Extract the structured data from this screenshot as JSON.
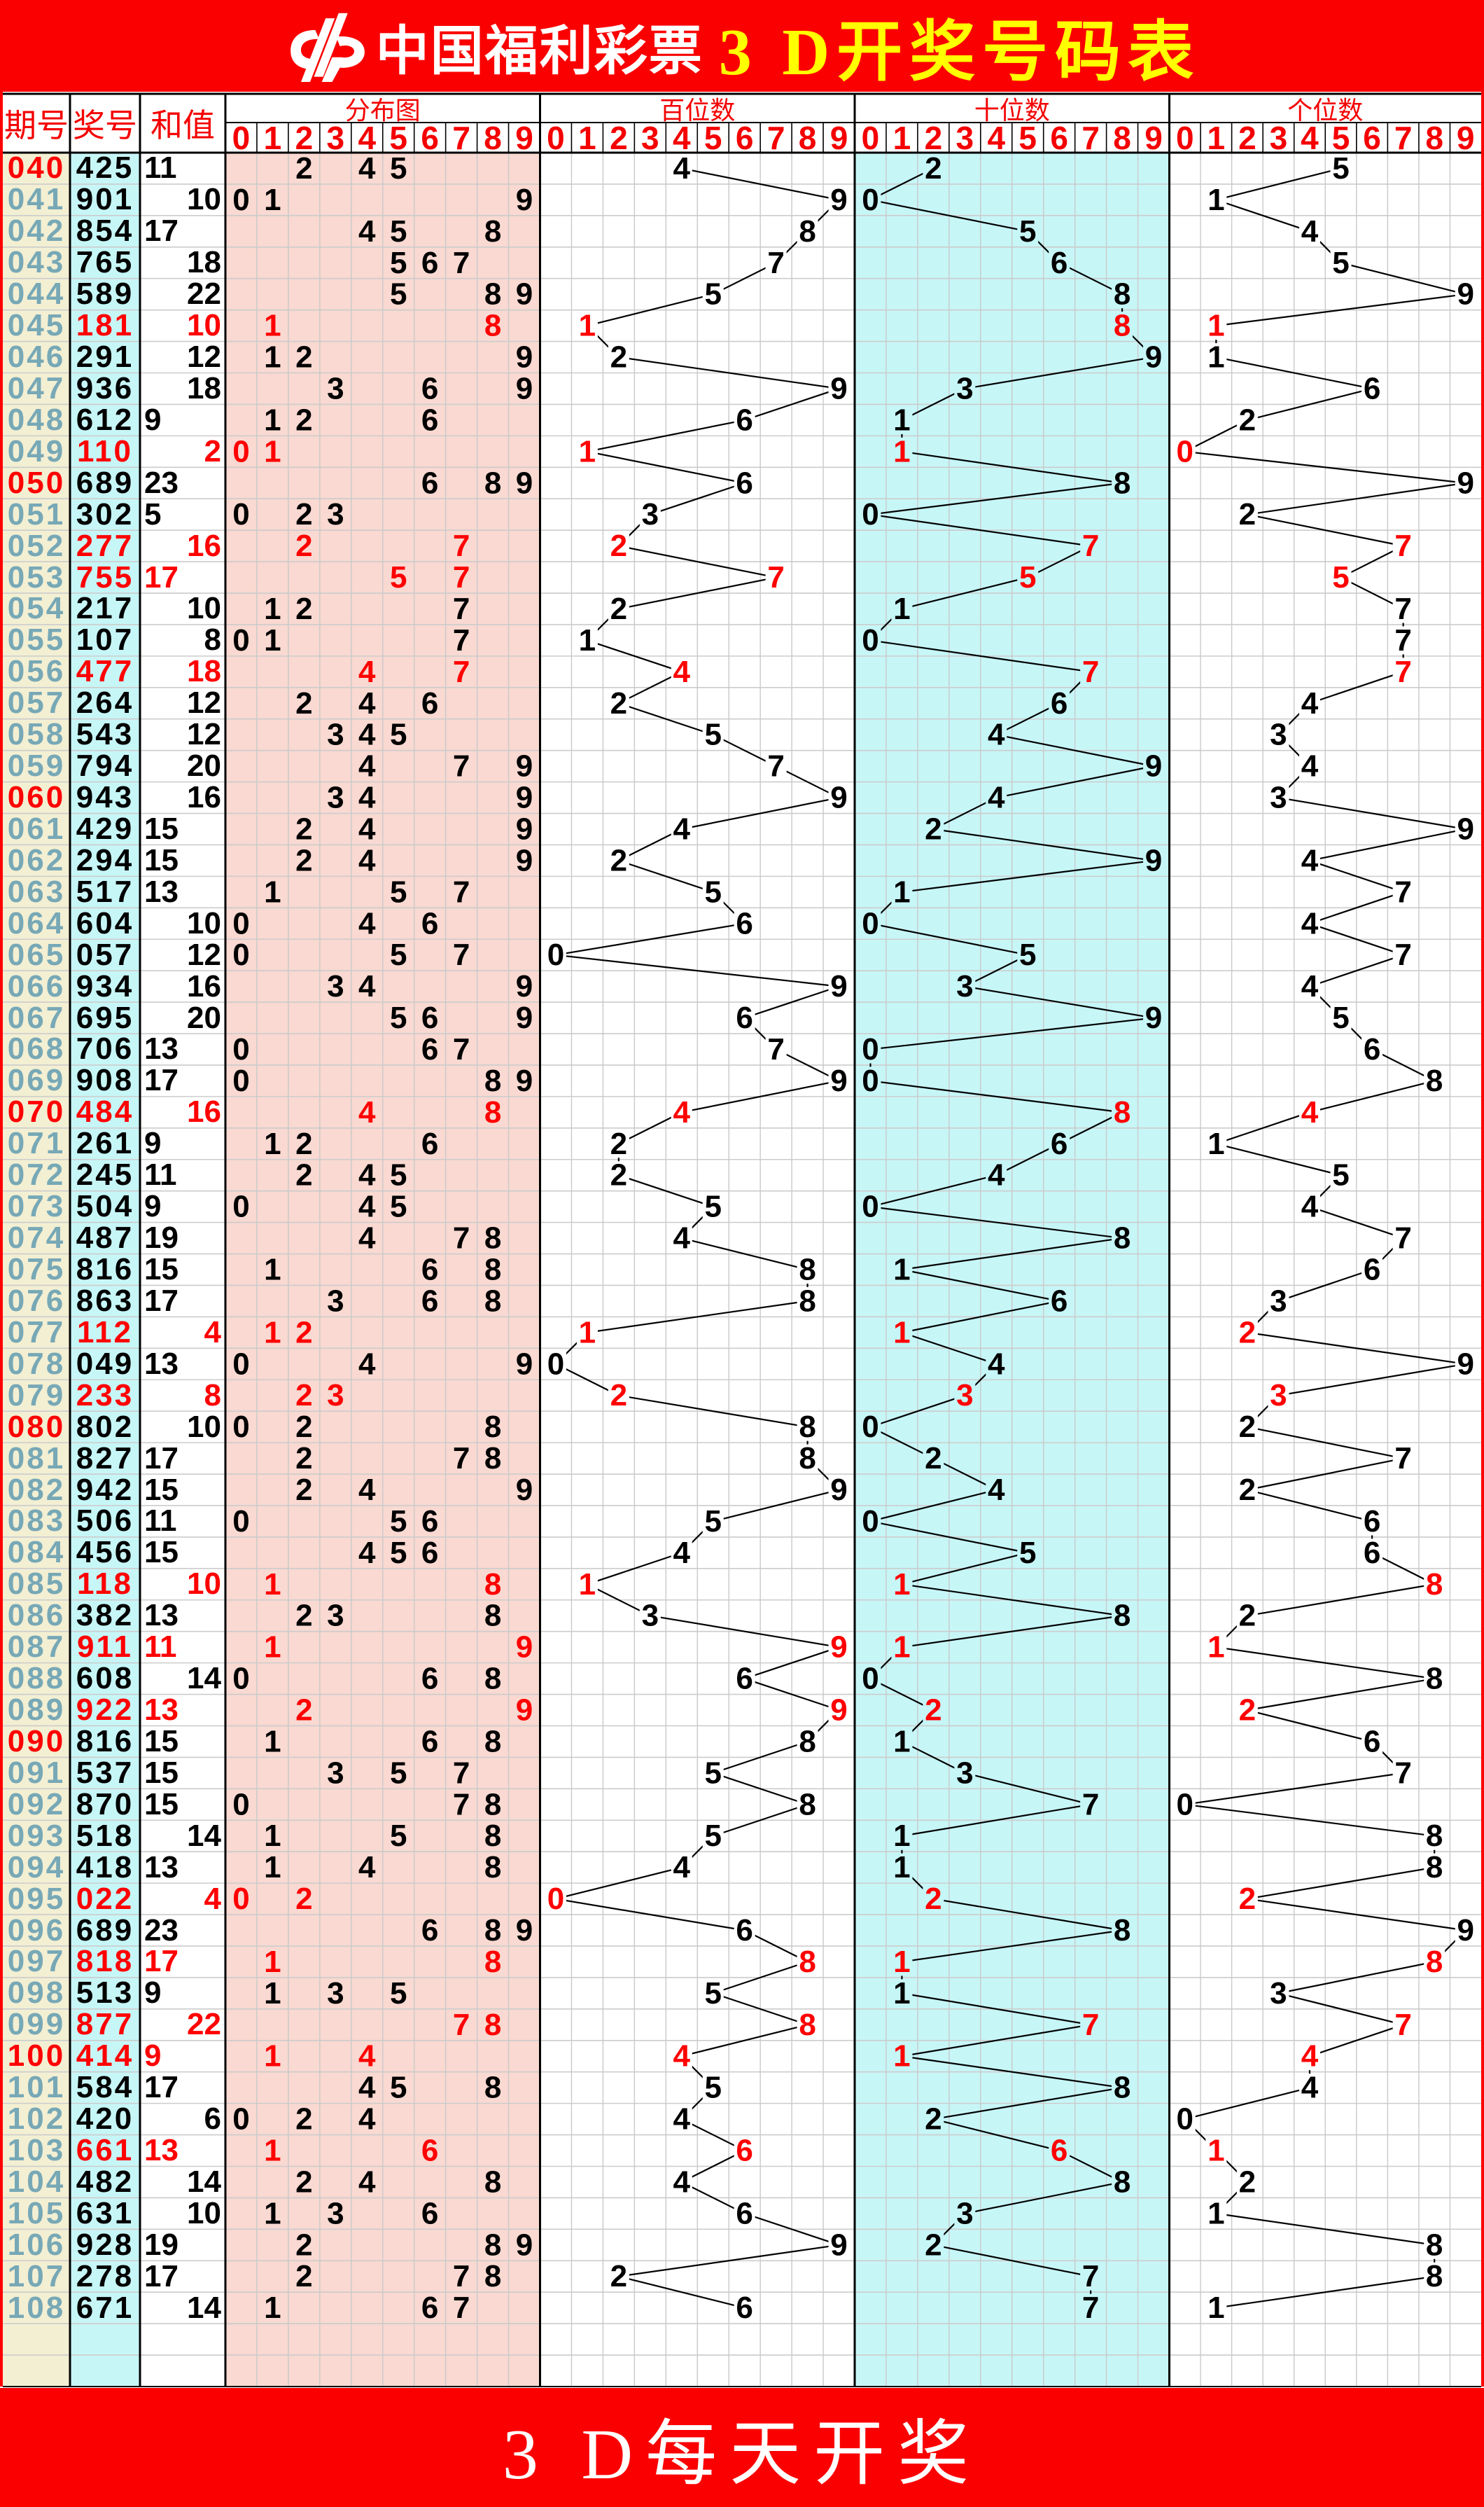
{
  "banner": {
    "brand": "中国福利彩票",
    "title": "3 D开奖号码表",
    "logo_icon": "cwl-logo",
    "background": "#fb0000",
    "brand_color": "#ffffff",
    "title_color": "#ffff00"
  },
  "footer": {
    "text": "3 D每天开奖"
  },
  "columns": {
    "period": "期号",
    "number": "奖号",
    "sum": "和值",
    "sections": [
      "分布图",
      "百位数",
      "十位数",
      "个位数"
    ],
    "digit_headers": [
      "0",
      "1",
      "2",
      "3",
      "4",
      "5",
      "6",
      "7",
      "8",
      "9"
    ]
  },
  "colors": {
    "accent_red": "#ff0000",
    "header_text_red": "#f40000",
    "period_column_bg": "#f3efd3",
    "number_column_bg": "#c7f6f7",
    "distribution_bg": "#f9d9d1",
    "tens_section_bg": "#c7f6f7",
    "period_text_teal": "#77a8b6",
    "grid_line": "#cccccc",
    "section_grid_line": "#c9c9c9",
    "line_color": "#000000"
  },
  "chart_data": {
    "type": "line",
    "panels": [
      "分布图",
      "百位数",
      "十位数",
      "个位数"
    ],
    "x_categories": [
      0,
      1,
      2,
      3,
      4,
      5,
      6,
      7,
      8,
      9
    ],
    "trailing_empty_rows": 2,
    "rows": [
      {
        "period": "040",
        "number": "425",
        "sum": 11,
        "red": false
      },
      {
        "period": "041",
        "number": "901",
        "sum": 10,
        "red": false
      },
      {
        "period": "042",
        "number": "854",
        "sum": 17,
        "red": false
      },
      {
        "period": "043",
        "number": "765",
        "sum": 18,
        "red": false
      },
      {
        "period": "044",
        "number": "589",
        "sum": 22,
        "red": false
      },
      {
        "period": "045",
        "number": "181",
        "sum": 10,
        "red": true
      },
      {
        "period": "046",
        "number": "291",
        "sum": 12,
        "red": false
      },
      {
        "period": "047",
        "number": "936",
        "sum": 18,
        "red": false
      },
      {
        "period": "048",
        "number": "612",
        "sum": 9,
        "red": false
      },
      {
        "period": "049",
        "number": "110",
        "sum": 2,
        "red": true
      },
      {
        "period": "050",
        "number": "689",
        "sum": 23,
        "red": false
      },
      {
        "period": "051",
        "number": "302",
        "sum": 5,
        "red": false
      },
      {
        "period": "052",
        "number": "277",
        "sum": 16,
        "red": true
      },
      {
        "period": "053",
        "number": "755",
        "sum": 17,
        "red": true
      },
      {
        "period": "054",
        "number": "217",
        "sum": 10,
        "red": false
      },
      {
        "period": "055",
        "number": "107",
        "sum": 8,
        "red": false
      },
      {
        "period": "056",
        "number": "477",
        "sum": 18,
        "red": true
      },
      {
        "period": "057",
        "number": "264",
        "sum": 12,
        "red": false
      },
      {
        "period": "058",
        "number": "543",
        "sum": 12,
        "red": false
      },
      {
        "period": "059",
        "number": "794",
        "sum": 20,
        "red": false
      },
      {
        "period": "060",
        "number": "943",
        "sum": 16,
        "red": false
      },
      {
        "period": "061",
        "number": "429",
        "sum": 15,
        "red": false
      },
      {
        "period": "062",
        "number": "294",
        "sum": 15,
        "red": false
      },
      {
        "period": "063",
        "number": "517",
        "sum": 13,
        "red": false
      },
      {
        "period": "064",
        "number": "604",
        "sum": 10,
        "red": false
      },
      {
        "period": "065",
        "number": "057",
        "sum": 12,
        "red": false
      },
      {
        "period": "066",
        "number": "934",
        "sum": 16,
        "red": false
      },
      {
        "period": "067",
        "number": "695",
        "sum": 20,
        "red": false
      },
      {
        "period": "068",
        "number": "706",
        "sum": 13,
        "red": false
      },
      {
        "period": "069",
        "number": "908",
        "sum": 17,
        "red": false
      },
      {
        "period": "070",
        "number": "484",
        "sum": 16,
        "red": true
      },
      {
        "period": "071",
        "number": "261",
        "sum": 9,
        "red": false
      },
      {
        "period": "072",
        "number": "245",
        "sum": 11,
        "red": false
      },
      {
        "period": "073",
        "number": "504",
        "sum": 9,
        "red": false
      },
      {
        "period": "074",
        "number": "487",
        "sum": 19,
        "red": false
      },
      {
        "period": "075",
        "number": "816",
        "sum": 15,
        "red": false
      },
      {
        "period": "076",
        "number": "863",
        "sum": 17,
        "red": false
      },
      {
        "period": "077",
        "number": "112",
        "sum": 4,
        "red": true
      },
      {
        "period": "078",
        "number": "049",
        "sum": 13,
        "red": false
      },
      {
        "period": "079",
        "number": "233",
        "sum": 8,
        "red": true
      },
      {
        "period": "080",
        "number": "802",
        "sum": 10,
        "red": false
      },
      {
        "period": "081",
        "number": "827",
        "sum": 17,
        "red": false
      },
      {
        "period": "082",
        "number": "942",
        "sum": 15,
        "red": false
      },
      {
        "period": "083",
        "number": "506",
        "sum": 11,
        "red": false
      },
      {
        "period": "084",
        "number": "456",
        "sum": 15,
        "red": false
      },
      {
        "period": "085",
        "number": "118",
        "sum": 10,
        "red": true
      },
      {
        "period": "086",
        "number": "382",
        "sum": 13,
        "red": false
      },
      {
        "period": "087",
        "number": "911",
        "sum": 11,
        "red": true
      },
      {
        "period": "088",
        "number": "608",
        "sum": 14,
        "red": false
      },
      {
        "period": "089",
        "number": "922",
        "sum": 13,
        "red": true
      },
      {
        "period": "090",
        "number": "816",
        "sum": 15,
        "red": false
      },
      {
        "period": "091",
        "number": "537",
        "sum": 15,
        "red": false
      },
      {
        "period": "092",
        "number": "870",
        "sum": 15,
        "red": false
      },
      {
        "period": "093",
        "number": "518",
        "sum": 14,
        "red": false
      },
      {
        "period": "094",
        "number": "418",
        "sum": 13,
        "red": false
      },
      {
        "period": "095",
        "number": "022",
        "sum": 4,
        "red": true
      },
      {
        "period": "096",
        "number": "689",
        "sum": 23,
        "red": false
      },
      {
        "period": "097",
        "number": "818",
        "sum": 17,
        "red": true
      },
      {
        "period": "098",
        "number": "513",
        "sum": 9,
        "red": false
      },
      {
        "period": "099",
        "number": "877",
        "sum": 22,
        "red": true
      },
      {
        "period": "100",
        "number": "414",
        "sum": 9,
        "red": true
      },
      {
        "period": "101",
        "number": "584",
        "sum": 17,
        "red": false
      },
      {
        "period": "102",
        "number": "420",
        "sum": 6,
        "red": false
      },
      {
        "period": "103",
        "number": "661",
        "sum": 13,
        "red": true
      },
      {
        "period": "104",
        "number": "482",
        "sum": 14,
        "red": false
      },
      {
        "period": "105",
        "number": "631",
        "sum": 10,
        "red": false
      },
      {
        "period": "106",
        "number": "928",
        "sum": 19,
        "red": false
      },
      {
        "period": "107",
        "number": "278",
        "sum": 17,
        "red": false
      },
      {
        "period": "108",
        "number": "671",
        "sum": 14,
        "red": false
      }
    ]
  }
}
